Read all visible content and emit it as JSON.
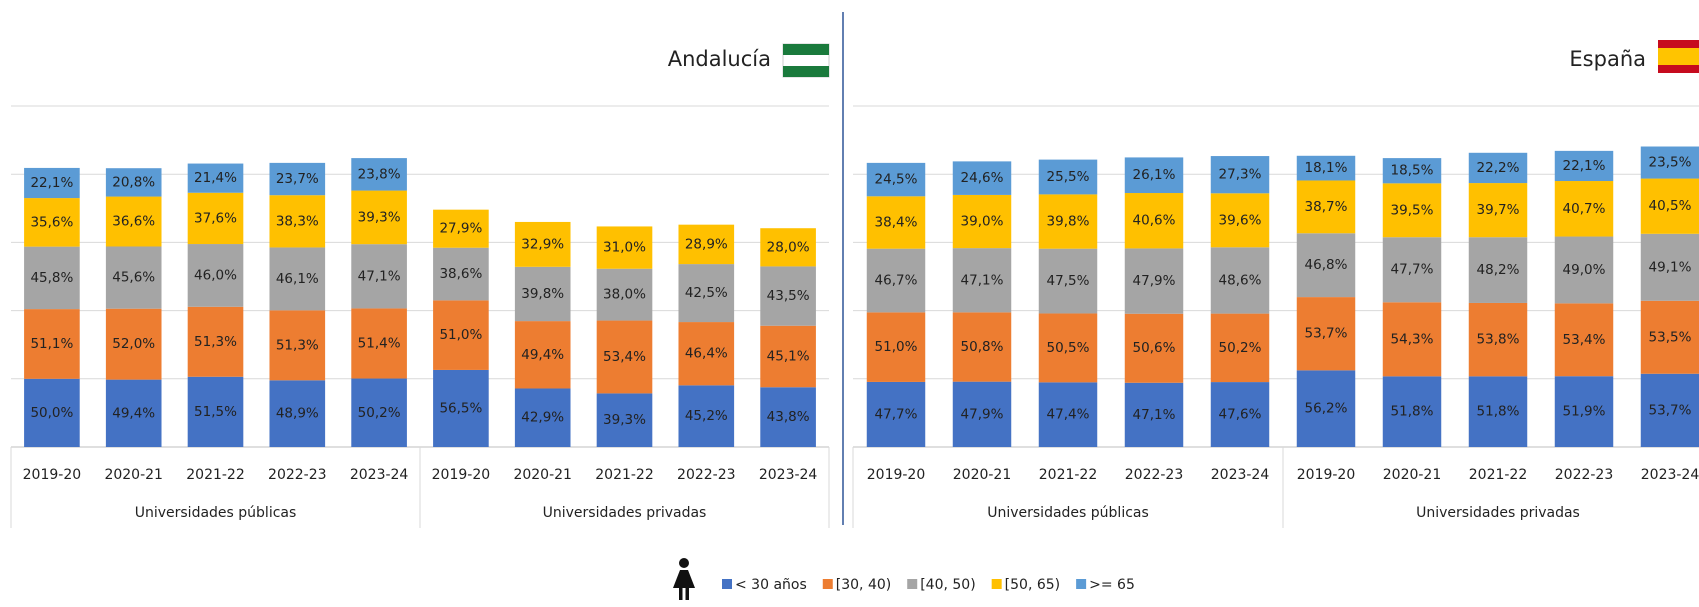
{
  "chart_data": [
    {
      "type": "bar",
      "stacked": true,
      "title": "Andalucía",
      "groups": [
        {
          "name": "Universidades públicas",
          "categories": [
            "2019-20",
            "2020-21",
            "2021-22",
            "2022-23",
            "2023-24"
          ]
        },
        {
          "name": "Universidades privadas",
          "categories": [
            "2019-20",
            "2020-21",
            "2021-22",
            "2022-23",
            "2023-24"
          ]
        }
      ],
      "ylim": [
        0,
        250
      ],
      "yticks": [
        0,
        50,
        100,
        150,
        200,
        250
      ],
      "grid": true,
      "series": [
        {
          "values": [
            50.0,
            49.4,
            51.5,
            48.9,
            50.2,
            56.5,
            42.9,
            39.3,
            45.2,
            43.8
          ],
          "value_labels": [
            "50,0%",
            "49,4%",
            "51,5%",
            "48,9%",
            "50,2%",
            "56,5%",
            "42,9%",
            "39,3%",
            "45,2%",
            "43,8%"
          ]
        },
        {
          "values": [
            51.1,
            52.0,
            51.3,
            51.3,
            51.4,
            51.0,
            49.4,
            53.4,
            46.4,
            45.1
          ],
          "value_labels": [
            "51,1%",
            "52,0%",
            "51,3%",
            "51,3%",
            "51,4%",
            "51,0%",
            "49,4%",
            "53,4%",
            "46,4%",
            "45,1%"
          ]
        },
        {
          "values": [
            45.8,
            45.6,
            46.0,
            46.1,
            47.1,
            38.6,
            39.8,
            38.0,
            42.5,
            43.5
          ],
          "value_labels": [
            "45,8%",
            "45,6%",
            "46,0%",
            "46,1%",
            "47,1%",
            "38,6%",
            "39,8%",
            "38,0%",
            "42,5%",
            "43,5%"
          ]
        },
        {
          "values": [
            35.6,
            36.6,
            37.6,
            38.3,
            39.3,
            27.9,
            32.9,
            31.0,
            28.9,
            28.0
          ],
          "value_labels": [
            "35,6%",
            "36,6%",
            "37,6%",
            "38,3%",
            "39,3%",
            "27,9%",
            "32,9%",
            "31,0%",
            "28,9%",
            "28,0%"
          ]
        },
        {
          "values": [
            22.1,
            20.8,
            21.4,
            23.7,
            23.8,
            null,
            null,
            null,
            null,
            null
          ],
          "value_labels": [
            "22,1%",
            "20,8%",
            "21,4%",
            "23,7%",
            "23,8%",
            null,
            null,
            null,
            null,
            null
          ]
        }
      ]
    },
    {
      "type": "bar",
      "stacked": true,
      "title": "España",
      "groups": [
        {
          "name": "Universidades públicas",
          "categories": [
            "2019-20",
            "2020-21",
            "2021-22",
            "2022-23",
            "2023-24"
          ]
        },
        {
          "name": "Universidades privadas",
          "categories": [
            "2019-20",
            "2020-21",
            "2021-22",
            "2022-23",
            "2023-24"
          ]
        }
      ],
      "ylim": [
        0,
        250
      ],
      "yticks": [
        0,
        50,
        100,
        150,
        200,
        250
      ],
      "grid": true,
      "series": [
        {
          "values": [
            47.7,
            47.9,
            47.4,
            47.1,
            47.6,
            56.2,
            51.8,
            51.8,
            51.9,
            53.7
          ],
          "value_labels": [
            "47,7%",
            "47,9%",
            "47,4%",
            "47,1%",
            "47,6%",
            "56,2%",
            "51,8%",
            "51,8%",
            "51,9%",
            "53,7%"
          ]
        },
        {
          "values": [
            51.0,
            50.8,
            50.5,
            50.6,
            50.2,
            53.7,
            54.3,
            53.8,
            53.4,
            53.5
          ],
          "value_labels": [
            "51,0%",
            "50,8%",
            "50,5%",
            "50,6%",
            "50,2%",
            "53,7%",
            "54,3%",
            "53,8%",
            "53,4%",
            "53,5%"
          ]
        },
        {
          "values": [
            46.7,
            47.1,
            47.5,
            47.9,
            48.6,
            46.8,
            47.7,
            48.2,
            49.0,
            49.1
          ],
          "value_labels": [
            "46,7%",
            "47,1%",
            "47,5%",
            "47,9%",
            "48,6%",
            "46,8%",
            "47,7%",
            "48,2%",
            "49,0%",
            "49,1%"
          ]
        },
        {
          "values": [
            38.4,
            39.0,
            39.8,
            40.6,
            39.6,
            38.7,
            39.5,
            39.7,
            40.7,
            40.5
          ],
          "value_labels": [
            "38,4%",
            "39,0%",
            "39,8%",
            "40,6%",
            "39,6%",
            "38,7%",
            "39,5%",
            "39,7%",
            "40,7%",
            "40,5%"
          ]
        },
        {
          "values": [
            24.5,
            24.6,
            25.5,
            26.1,
            27.3,
            18.1,
            18.5,
            22.2,
            22.1,
            23.5
          ],
          "value_labels": [
            "24,5%",
            "24,6%",
            "25,5%",
            "26,1%",
            "27,3%",
            "18,1%",
            "18,5%",
            "22,2%",
            "22,1%",
            "23,5%"
          ]
        }
      ]
    }
  ],
  "legend": [
    {
      "name": "< 30 años",
      "color": "#4472c4"
    },
    {
      "name": "[30, 40)",
      "color": "#ed7d31"
    },
    {
      "name": "[40, 50)",
      "color": "#a5a5a5"
    },
    {
      "name": "[50, 65)",
      "color": "#ffc000"
    },
    {
      "name": ">= 65",
      "color": "#5b9bd5"
    }
  ]
}
